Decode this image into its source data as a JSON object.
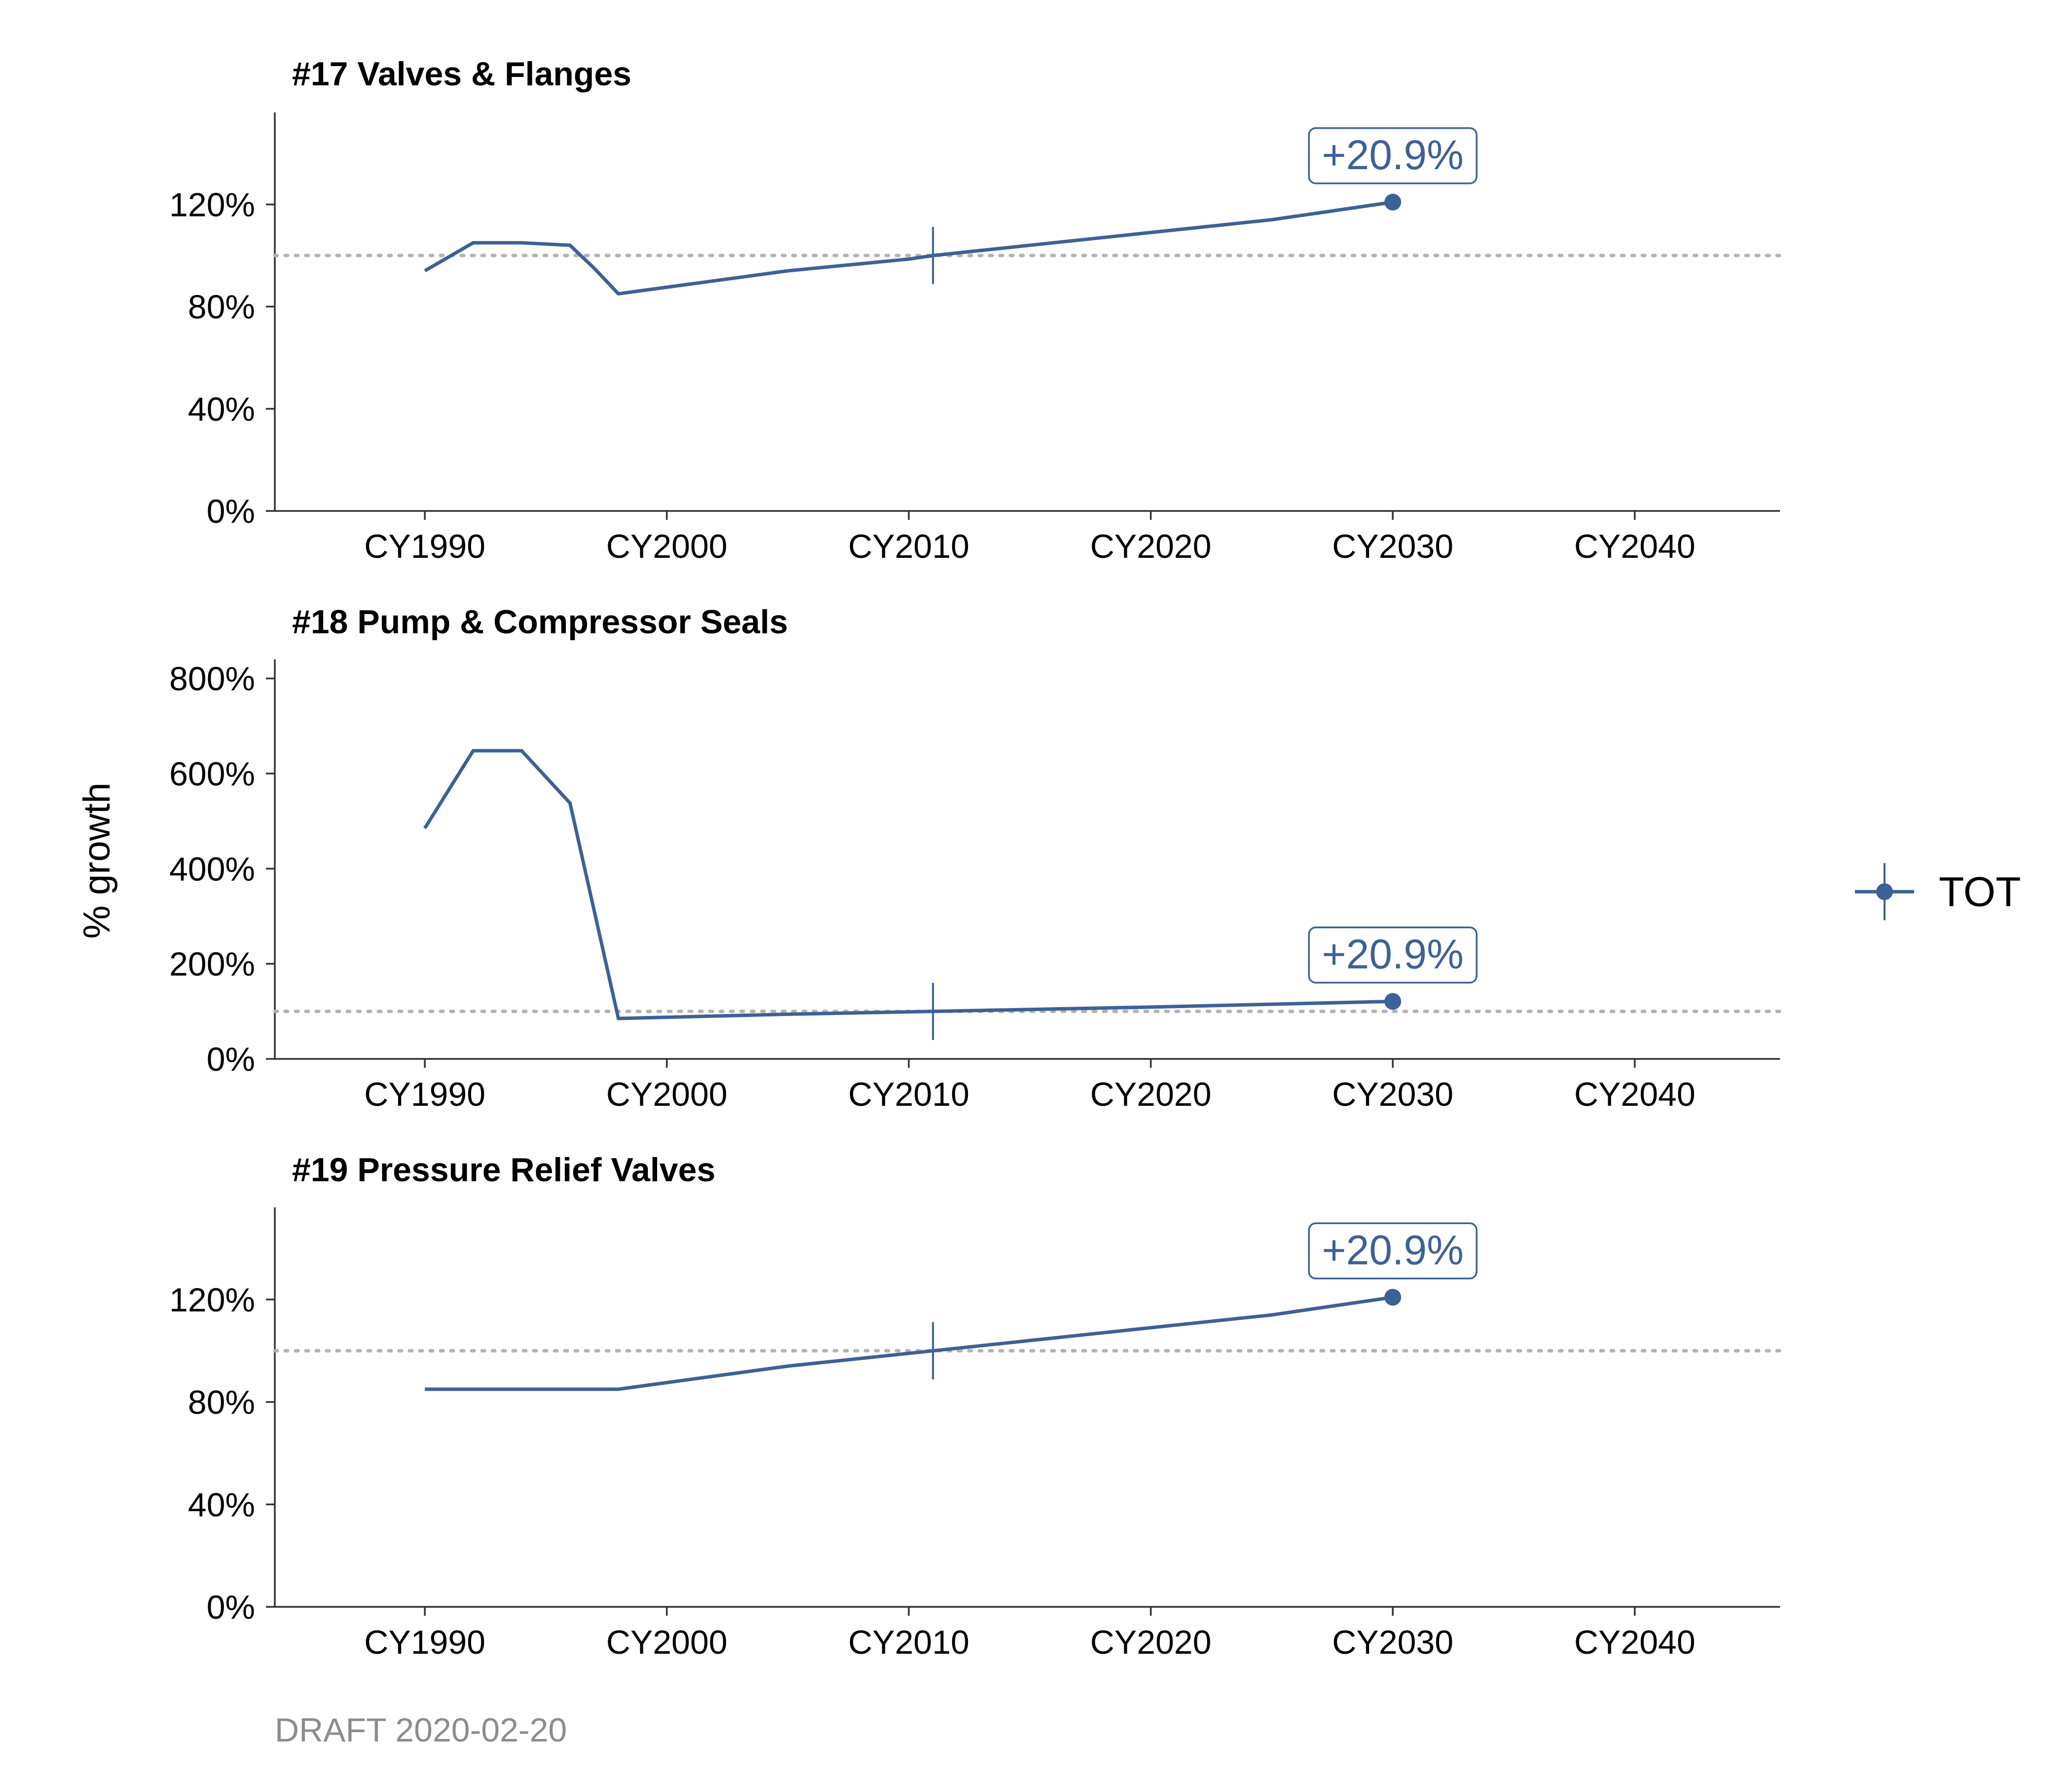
{
  "colors": {
    "series": "#3d6196",
    "reference": "#b3b3b3",
    "axis": "#333333",
    "footer": "#8c8c8c"
  },
  "y_axis_label": "% growth",
  "legend": {
    "entries": [
      "TOT"
    ],
    "placement": "right"
  },
  "footer": "DRAFT 2020-02-20",
  "chart_data": [
    {
      "type": "line",
      "title": "#17 Valves & Flanges",
      "xlabel": "",
      "ylabel": "% growth",
      "x_ticks": [
        1990,
        2000,
        2010,
        2020,
        2030,
        2040
      ],
      "x_tick_labels": [
        "CY1990",
        "CY2000",
        "CY2010",
        "CY2020",
        "CY2030",
        "CY2040"
      ],
      "y_ticks": [
        0,
        40,
        80,
        120
      ],
      "y_tick_labels": [
        "0%",
        "40%",
        "80%",
        "120%"
      ],
      "xlim": [
        1983.8,
        2046.0
      ],
      "ylim": [
        0,
        156
      ],
      "reference_line": 100,
      "marker_year": 2011,
      "series": [
        {
          "name": "TOT",
          "x": [
            1990,
            1992,
            1994,
            1996,
            1997,
            1998,
            2005,
            2010,
            2011,
            2015,
            2020,
            2025,
            2030
          ],
          "y": [
            94,
            105,
            105,
            104,
            95,
            85,
            94,
            98.6,
            100,
            104,
            109,
            114,
            120.9
          ]
        }
      ],
      "annotation": {
        "x": 2030,
        "y": 120.9,
        "label": "+20.9%"
      }
    },
    {
      "type": "line",
      "title": "#18 Pump & Compressor Seals",
      "xlabel": "",
      "ylabel": "% growth",
      "x_ticks": [
        1990,
        2000,
        2010,
        2020,
        2030,
        2040
      ],
      "x_tick_labels": [
        "CY1990",
        "CY2000",
        "CY2010",
        "CY2020",
        "CY2030",
        "CY2040"
      ],
      "y_ticks": [
        0,
        200,
        400,
        600,
        800
      ],
      "y_tick_labels": [
        "0%",
        "200%",
        "400%",
        "600%",
        "800%"
      ],
      "xlim": [
        1983.8,
        2046.0
      ],
      "ylim": [
        0,
        840
      ],
      "reference_line": 100,
      "marker_year": 2011,
      "series": [
        {
          "name": "TOT",
          "x": [
            1990,
            1992,
            1994,
            1996,
            1998,
            2005,
            2011,
            2020,
            2030
          ],
          "y": [
            485,
            648,
            648,
            538,
            85,
            94,
            100,
            109,
            120.9
          ]
        }
      ],
      "annotation": {
        "x": 2030,
        "y": 120.9,
        "label": "+20.9%"
      }
    },
    {
      "type": "line",
      "title": "#19 Pressure Relief Valves",
      "xlabel": "",
      "ylabel": "% growth",
      "x_ticks": [
        1990,
        2000,
        2010,
        2020,
        2030,
        2040
      ],
      "x_tick_labels": [
        "CY1990",
        "CY2000",
        "CY2010",
        "CY2020",
        "CY2030",
        "CY2040"
      ],
      "y_ticks": [
        0,
        40,
        80,
        120
      ],
      "y_tick_labels": [
        "0%",
        "40%",
        "80%",
        "120%"
      ],
      "xlim": [
        1983.8,
        2046.0
      ],
      "ylim": [
        0,
        156
      ],
      "reference_line": 100,
      "marker_year": 2011,
      "series": [
        {
          "name": "TOT",
          "x": [
            1990,
            1994,
            1998,
            2005,
            2011,
            2015,
            2020,
            2025,
            2030
          ],
          "y": [
            85,
            85,
            85,
            94,
            100,
            104,
            109,
            114,
            120.9
          ]
        }
      ],
      "annotation": {
        "x": 2030,
        "y": 120.9,
        "label": "+20.9%"
      }
    }
  ]
}
